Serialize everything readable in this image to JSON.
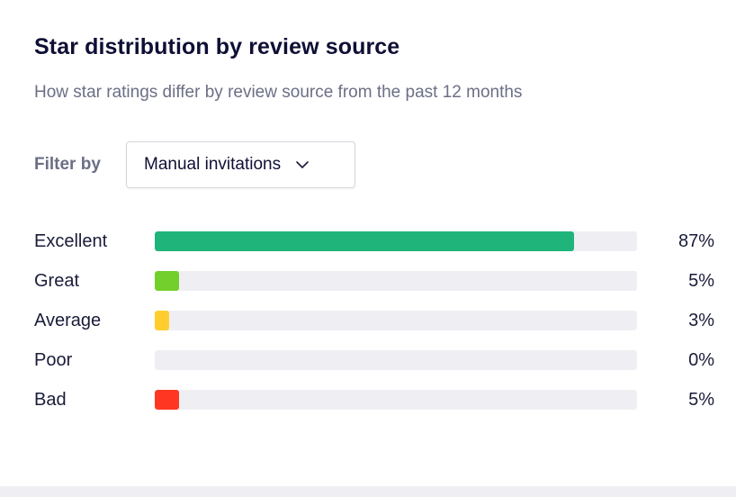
{
  "card": {
    "title": "Star distribution by review source",
    "subtitle": "How star ratings differ by review source from the past 12 months"
  },
  "filter": {
    "label": "Filter by",
    "selected": "Manual invitations",
    "icon": "chevron-down-icon"
  },
  "distribution": [
    {
      "label": "Excellent",
      "percent_text": "87%",
      "fill_fraction": 0.87,
      "color": "#1fb57a"
    },
    {
      "label": "Great",
      "percent_text": "5%",
      "fill_fraction": 0.05,
      "color": "#73cf2c"
    },
    {
      "label": "Average",
      "percent_text": "3%",
      "fill_fraction": 0.03,
      "color": "#ffce2e"
    },
    {
      "label": "Poor",
      "percent_text": "0%",
      "fill_fraction": 0.0,
      "color": "#ff8722"
    },
    {
      "label": "Bad",
      "percent_text": "5%",
      "fill_fraction": 0.05,
      "color": "#ff3722"
    }
  ],
  "colors": {
    "track": "#efeff3",
    "title": "#0e0f35",
    "muted_text": "#6b6f85"
  }
}
